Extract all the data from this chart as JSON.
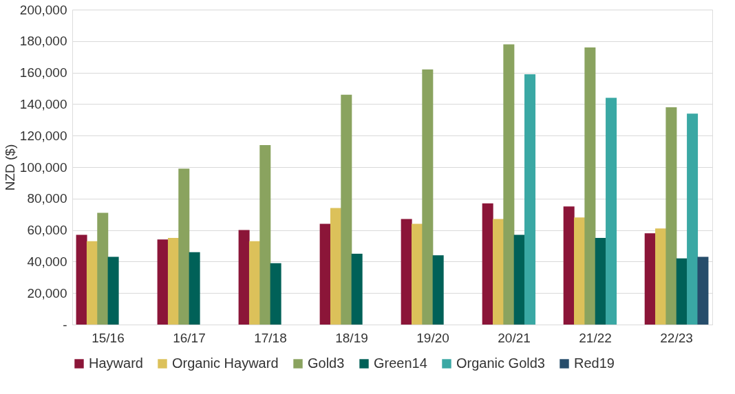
{
  "chart_data": {
    "type": "bar",
    "ylabel": "NZD ($)",
    "categories": [
      "15/16",
      "16/17",
      "17/18",
      "18/19",
      "19/20",
      "20/21",
      "21/22",
      "22/23"
    ],
    "series": [
      {
        "name": "Hayward",
        "color": "#8b1538",
        "values": [
          57000,
          54000,
          60000,
          64000,
          67000,
          77000,
          75000,
          58000
        ]
      },
      {
        "name": "Organic Hayward",
        "color": "#dcc15a",
        "values": [
          53000,
          55000,
          53000,
          74000,
          64000,
          67000,
          68000,
          61000
        ]
      },
      {
        "name": "Gold3",
        "color": "#8aa35f",
        "values": [
          71000,
          99000,
          114000,
          146000,
          162000,
          178000,
          176000,
          138000
        ]
      },
      {
        "name": "Green14",
        "color": "#006158",
        "values": [
          43000,
          46000,
          39000,
          45000,
          44000,
          57000,
          55000,
          42000
        ]
      },
      {
        "name": "Organic Gold3",
        "color": "#3aa8a4",
        "values": [
          null,
          null,
          null,
          null,
          null,
          159000,
          144000,
          134000
        ]
      },
      {
        "name": "Red19",
        "color": "#264d6b",
        "values": [
          null,
          null,
          null,
          null,
          null,
          null,
          null,
          43000
        ]
      }
    ],
    "ylim": [
      0,
      200000
    ],
    "yticks": [
      {
        "value": 0,
        "label": "-"
      },
      {
        "value": 20000,
        "label": "20,000"
      },
      {
        "value": 40000,
        "label": "40,000"
      },
      {
        "value": 60000,
        "label": "60,000"
      },
      {
        "value": 80000,
        "label": "80,000"
      },
      {
        "value": 100000,
        "label": "100,000"
      },
      {
        "value": 120000,
        "label": "120,000"
      },
      {
        "value": 140000,
        "label": "140,000"
      },
      {
        "value": 160000,
        "label": "160,000"
      },
      {
        "value": 180000,
        "label": "180,000"
      },
      {
        "value": 200000,
        "label": "200,000"
      }
    ],
    "grid": "y",
    "legend": "bottom"
  }
}
